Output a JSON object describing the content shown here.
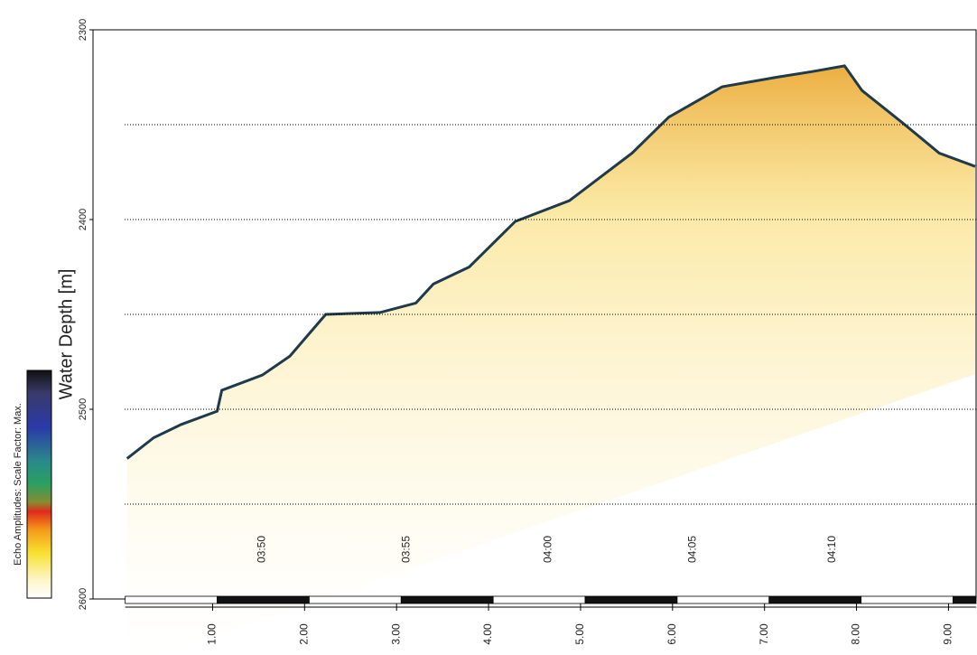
{
  "chart_data": {
    "type": "line",
    "y_label": "Water Depth [m]",
    "colorbar_label": "Echo Amplitudes:  Scale Factor:  Max.",
    "x": [
      0.07,
      0.36,
      0.66,
      1.05,
      1.1,
      1.54,
      1.84,
      2.23,
      2.82,
      3.21,
      3.4,
      3.79,
      4.29,
      4.88,
      5.56,
      5.96,
      6.54,
      7.13,
      7.52,
      7.87,
      8.06,
      8.5,
      8.9,
      9.29
    ],
    "series": [
      {
        "color": "#1f3a4a",
        "fill": "#f5c542",
        "values": [
          2526,
          2515,
          2508,
          2501,
          2490,
          2482,
          2472,
          2450,
          2449,
          2444,
          2434,
          2425,
          2401,
          2390,
          2365,
          2346,
          2330,
          2325,
          2322,
          2319,
          2332,
          2349,
          2365,
          2372
        ]
      }
    ],
    "xlim": [
      -0.3,
      9.3
    ],
    "ylim": [
      2600,
      2300
    ],
    "yticks": [
      2300,
      2400,
      2500,
      2600
    ],
    "grid_yticks": [
      2350,
      2400,
      2450,
      2500,
      2550
    ],
    "xticks": [
      {
        "value": 1,
        "label": "1.00"
      },
      {
        "value": 2,
        "label": "2.00"
      },
      {
        "value": 3,
        "label": "3.00"
      },
      {
        "value": 4,
        "label": "4.00"
      },
      {
        "value": 5,
        "label": "5.00"
      },
      {
        "value": 6,
        "label": "6.00"
      },
      {
        "value": 7,
        "label": "7.00"
      },
      {
        "value": 8,
        "label": "8.00"
      },
      {
        "value": 9,
        "label": "9.00"
      }
    ],
    "time_labels": [
      {
        "value": 1.54,
        "label": "03:50"
      },
      {
        "value": 3.11,
        "label": "03:55"
      },
      {
        "value": 4.65,
        "label": "04:00"
      },
      {
        "value": 6.22,
        "label": "04:05"
      },
      {
        "value": 7.74,
        "label": "04:10"
      }
    ],
    "grid": true
  }
}
